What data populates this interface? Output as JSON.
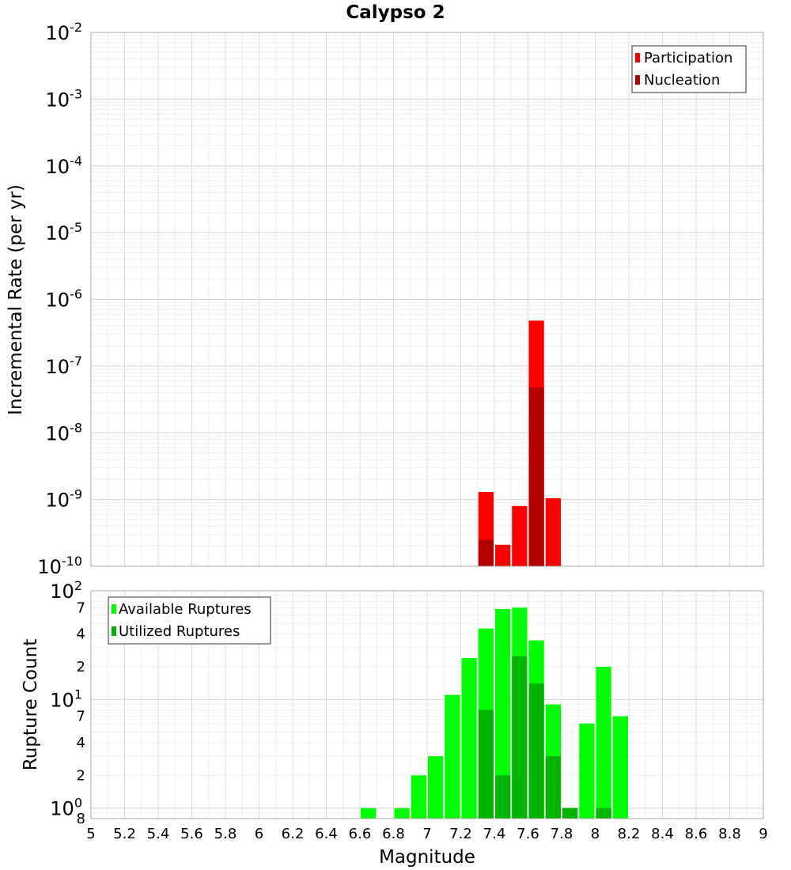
{
  "chart_data": [
    {
      "type": "bar",
      "title": "Calypso 2",
      "ylabel": "Incremental Rate (per yr)",
      "xlabel": "",
      "y_scale": "log",
      "ylim": [
        1e-10,
        0.01
      ],
      "xlim": [
        5,
        9
      ],
      "y_ticks": [
        {
          "base": "10",
          "exp": "-10"
        },
        {
          "base": "10",
          "exp": "-9"
        },
        {
          "base": "10",
          "exp": "-8"
        },
        {
          "base": "10",
          "exp": "-7"
        },
        {
          "base": "10",
          "exp": "-6"
        },
        {
          "base": "10",
          "exp": "-5"
        },
        {
          "base": "10",
          "exp": "-4"
        },
        {
          "base": "10",
          "exp": "-3"
        },
        {
          "base": "10",
          "exp": "-2"
        }
      ],
      "grid": true,
      "legend_position": "top-right",
      "bar_width": 0.1,
      "series": [
        {
          "name": "Participation",
          "color": "#ff0000",
          "x": [
            7.35,
            7.45,
            7.55,
            7.65,
            7.75
          ],
          "values": [
            1.3e-09,
            2.1e-10,
            8e-10,
            4.8e-07,
            1.05e-09
          ]
        },
        {
          "name": "Nucleation",
          "color": "#b30000",
          "x": [
            7.35,
            7.65
          ],
          "values": [
            2.5e-10,
            4.8e-08
          ]
        }
      ]
    },
    {
      "type": "bar",
      "title": "",
      "ylabel": "Rupture Count",
      "xlabel": "Magnitude",
      "y_scale": "log",
      "ylim": [
        0.8,
        100
      ],
      "xlim": [
        5,
        9
      ],
      "y_major_ticks": [
        {
          "value": 1,
          "base": "10",
          "exp": "0"
        },
        {
          "value": 10,
          "base": "10",
          "exp": "1"
        },
        {
          "value": 100,
          "base": "10",
          "exp": "2"
        }
      ],
      "y_minor_ticks": [
        {
          "value": 0.8,
          "label": "8"
        },
        {
          "value": 2,
          "label": "2"
        },
        {
          "value": 4,
          "label": "4"
        },
        {
          "value": 7,
          "label": "7"
        },
        {
          "value": 20,
          "label": "2"
        },
        {
          "value": 40,
          "label": "4"
        },
        {
          "value": 70,
          "label": "7"
        }
      ],
      "x_ticks": [
        5,
        5.2,
        5.4,
        5.6,
        5.8,
        6,
        6.2,
        6.4,
        6.6,
        6.8,
        7,
        7.2,
        7.4,
        7.6,
        7.8,
        8,
        8.2,
        8.4,
        8.6,
        8.8,
        9
      ],
      "x_tick_labels": [
        "5",
        "5.2",
        "5.4",
        "5.6",
        "5.8",
        "6",
        "6.2",
        "6.4",
        "6.6",
        "6.8",
        "7",
        "7.2",
        "7.4",
        "7.6",
        "7.8",
        "8",
        "8.2",
        "8.4",
        "8.6",
        "8.8",
        "9"
      ],
      "grid": true,
      "legend_position": "top-left",
      "bar_width": 0.1,
      "series": [
        {
          "name": "Available Ruptures",
          "color": "#00ff00",
          "x": [
            6.65,
            6.85,
            6.95,
            7.05,
            7.15,
            7.25,
            7.35,
            7.45,
            7.55,
            7.65,
            7.75,
            7.85,
            7.95,
            8.05,
            8.15
          ],
          "values": [
            1,
            1,
            2,
            3,
            11,
            24,
            45,
            68,
            70,
            35,
            9,
            1,
            6,
            20,
            7
          ]
        },
        {
          "name": "Utilized Ruptures",
          "color": "#00b300",
          "x": [
            7.35,
            7.45,
            7.55,
            7.65,
            7.75,
            7.85,
            8.05
          ],
          "values": [
            8,
            2,
            25,
            14,
            3,
            1,
            1
          ]
        }
      ]
    }
  ]
}
